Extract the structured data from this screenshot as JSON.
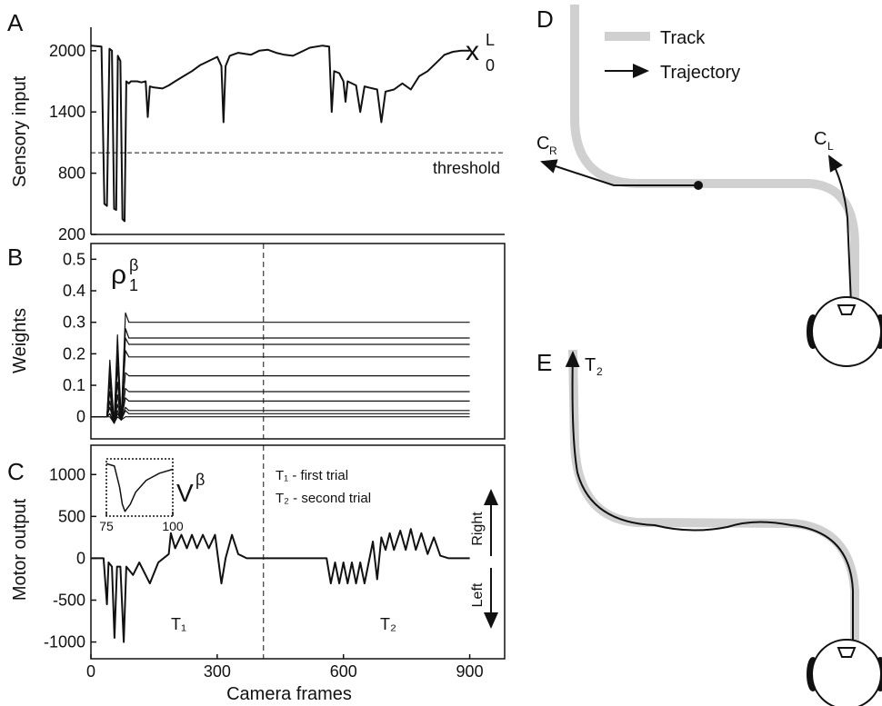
{
  "chart_data": [
    {
      "type": "line",
      "panel": "A",
      "ylabel": "Sensory input",
      "xlim": [
        0,
        983
      ],
      "ylim": [
        200,
        2230
      ],
      "yticks": [
        200,
        800,
        1400,
        2000
      ],
      "series_label": {
        "base": "x",
        "sub": "0",
        "sup": "L"
      },
      "hline": {
        "value": 1000,
        "label": "threshold"
      },
      "x": [
        0,
        25,
        32,
        38,
        44,
        50,
        55,
        60,
        64,
        70,
        75,
        80,
        84,
        90,
        95,
        110,
        120,
        130,
        135,
        140,
        150,
        170,
        185,
        200,
        220,
        240,
        260,
        280,
        300,
        310,
        315,
        320,
        330,
        350,
        380,
        400,
        420,
        440,
        460,
        480,
        500,
        520,
        550,
        566,
        572,
        578,
        590,
        600,
        605,
        610,
        630,
        640,
        650,
        660,
        680,
        690,
        700,
        720,
        740,
        760,
        780,
        800,
        820,
        840,
        860,
        880,
        900
      ],
      "series": [
        {
          "color": "#111111",
          "values": [
            2050,
            2040,
            500,
            480,
            2020,
            2000,
            450,
            440,
            1950,
            1900,
            350,
            330,
            1700,
            1680,
            1700,
            1700,
            1690,
            1700,
            1350,
            1650,
            1640,
            1630,
            1660,
            1700,
            1750,
            1800,
            1860,
            1900,
            1940,
            1850,
            1300,
            1850,
            1950,
            1980,
            1960,
            2000,
            2010,
            1980,
            1960,
            1950,
            1990,
            2030,
            2050,
            2040,
            1400,
            1800,
            1780,
            1700,
            1500,
            1700,
            1660,
            1400,
            1650,
            1640,
            1620,
            1300,
            1600,
            1620,
            1680,
            1620,
            1750,
            1800,
            1880,
            1960,
            1990,
            2000,
            2000
          ]
        }
      ]
    },
    {
      "type": "line",
      "panel": "B",
      "ylabel": "Weights",
      "xlim": [
        0,
        983
      ],
      "ylim": [
        -0.07,
        0.55
      ],
      "yticks": [
        0,
        0.1,
        0.2,
        0.3,
        0.4,
        0.5
      ],
      "vline": 410,
      "series_label": {
        "base": "ρ",
        "sub": "1",
        "sup": "β"
      },
      "x": [
        0,
        38,
        45,
        55,
        63,
        72,
        82,
        90,
        900
      ],
      "series": [
        {
          "color": "#111111",
          "values": [
            0,
            0,
            0.18,
            -0.02,
            0.26,
            -0.01,
            0.33,
            0.3,
            0.3
          ]
        },
        {
          "color": "#111111",
          "values": [
            0,
            0,
            0.15,
            -0.02,
            0.21,
            -0.01,
            0.28,
            0.25,
            0.25
          ]
        },
        {
          "color": "#111111",
          "values": [
            0,
            0,
            0.14,
            -0.02,
            0.2,
            -0.01,
            0.25,
            0.23,
            0.23
          ]
        },
        {
          "color": "#111111",
          "values": [
            0,
            0,
            0.11,
            -0.02,
            0.16,
            -0.01,
            0.21,
            0.19,
            0.19
          ]
        },
        {
          "color": "#111111",
          "values": [
            0,
            0,
            0.08,
            -0.02,
            0.11,
            -0.01,
            0.14,
            0.13,
            0.13
          ]
        },
        {
          "color": "#111111",
          "values": [
            0,
            0,
            0.05,
            -0.02,
            0.07,
            -0.01,
            0.09,
            0.08,
            0.08
          ]
        },
        {
          "color": "#111111",
          "values": [
            0,
            0,
            0.03,
            -0.02,
            0.04,
            -0.01,
            0.06,
            0.05,
            0.05
          ]
        },
        {
          "color": "#111111",
          "values": [
            0,
            0,
            0.01,
            -0.02,
            0.02,
            -0.01,
            0.03,
            0.02,
            0.02
          ]
        },
        {
          "color": "#111111",
          "values": [
            0,
            0,
            0.01,
            -0.02,
            0.01,
            -0.01,
            0.02,
            0.01,
            0.01
          ]
        },
        {
          "color": "#111111",
          "values": [
            0,
            0,
            0,
            -0.02,
            0,
            -0.01,
            0,
            0,
            0
          ]
        }
      ]
    },
    {
      "type": "line",
      "panel": "C",
      "ylabel": "Motor output",
      "xlabel": "Camera frames",
      "xlim": [
        0,
        983
      ],
      "ylim": [
        -1200,
        1350
      ],
      "yticks": [
        -1000,
        -500,
        0,
        500,
        1000
      ],
      "xticks": [
        0,
        300,
        600,
        900
      ],
      "vline": 410,
      "annotations": [
        "T₁ - first trial",
        "T₂ - second trial",
        "Right",
        "Left",
        "T₁",
        "T₂"
      ],
      "x": [
        0,
        30,
        38,
        42,
        50,
        56,
        62,
        70,
        78,
        84,
        100,
        115,
        140,
        160,
        185,
        190,
        200,
        215,
        228,
        240,
        252,
        266,
        280,
        295,
        310,
        320,
        335,
        350,
        370,
        410,
        560,
        570,
        580,
        590,
        600,
        610,
        620,
        630,
        640,
        650,
        660,
        670,
        680,
        690,
        700,
        710,
        720,
        735,
        748,
        760,
        772,
        785,
        800,
        815,
        830,
        850,
        900
      ],
      "series": [
        {
          "color": "#111111",
          "values": [
            0,
            0,
            -550,
            -50,
            -100,
            -950,
            -100,
            -100,
            -1000,
            -100,
            -200,
            -50,
            -300,
            -50,
            50,
            300,
            120,
            280,
            120,
            280,
            120,
            280,
            120,
            280,
            -300,
            0,
            280,
            50,
            0,
            0,
            0,
            -300,
            -50,
            -300,
            -50,
            -300,
            -50,
            -300,
            -50,
            -300,
            -50,
            200,
            -250,
            250,
            100,
            300,
            100,
            330,
            100,
            350,
            100,
            300,
            50,
            250,
            30,
            0,
            0
          ]
        }
      ]
    },
    {
      "type": "line",
      "xlim": [
        75,
        100
      ],
      "ylim": [
        -1.1,
        0.1
      ],
      "xticks": [
        75,
        100
      ],
      "series_label": {
        "base": "V",
        "sup": "β"
      },
      "x": [
        75,
        78,
        80,
        81,
        82,
        84,
        86,
        90,
        95,
        100
      ],
      "series": [
        {
          "color": "#111111",
          "values": [
            0,
            -0.05,
            -0.5,
            -0.85,
            -1,
            -0.85,
            -0.6,
            -0.35,
            -0.2,
            -0.12
          ]
        }
      ]
    }
  ],
  "diagram_d": {
    "label": "D",
    "legend": [
      "Track",
      "Trajectory"
    ],
    "targets": [
      {
        "base": "C",
        "sub": "R"
      },
      {
        "base": "C",
        "sub": "L"
      }
    ]
  },
  "diagram_e": {
    "label": "E",
    "target": {
      "base": "T",
      "sub": "2"
    }
  }
}
